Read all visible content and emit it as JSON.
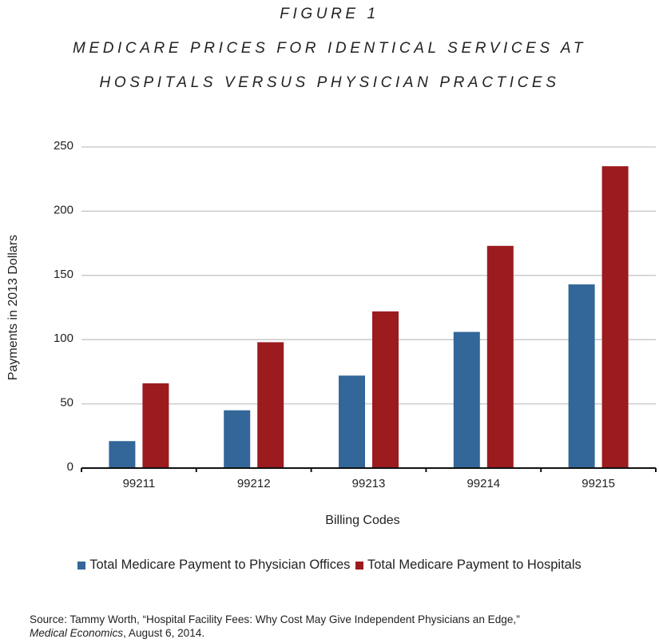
{
  "chart_data": {
    "type": "bar",
    "title_lines": [
      "FIGURE 1",
      "MEDICARE PRICES FOR IDENTICAL SERVICES AT",
      "HOSPITALS VERSUS PHYSICIAN PRACTICES"
    ],
    "xlabel": "Billing Codes",
    "ylabel": "Payments in 2013 Dollars",
    "categories": [
      "99211",
      "99212",
      "99213",
      "99214",
      "99215"
    ],
    "series": [
      {
        "name": "Total Medicare Payment to Physician Offices",
        "color": "#336699",
        "values": [
          21,
          45,
          72,
          106,
          143
        ]
      },
      {
        "name": "Total Medicare Payment to Hospitals",
        "color": "#9b1b1f",
        "values": [
          66,
          98,
          122,
          173,
          235
        ]
      }
    ],
    "ylim": [
      0,
      250
    ],
    "yticks": [
      0,
      50,
      100,
      150,
      200,
      250
    ],
    "grid": true,
    "legend_position": "bottom"
  },
  "source": {
    "prefix": "Source: Tammy Worth, “Hospital Facility Fees: Why Cost May Give Independent Physicians an Edge,”",
    "journal": "Medical Economics",
    "suffix": ", August 6, 2014."
  }
}
